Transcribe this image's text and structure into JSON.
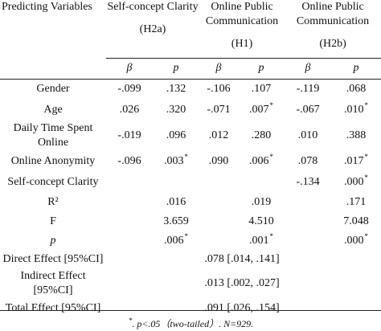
{
  "headers": {
    "predicting_variables": "Predicting Variables",
    "groups": [
      {
        "title": "Self-concept Clarity",
        "code": "(H2a)"
      },
      {
        "title": "Online Public Communication",
        "code": "(H1)"
      },
      {
        "title": "Online Public Communication",
        "code": "(H2b)"
      }
    ],
    "beta": "β",
    "p": "p"
  },
  "rows": [
    {
      "label": "Gender",
      "v": [
        "-.099",
        ".132",
        "-.106",
        ".107",
        "-.119",
        ".068"
      ],
      "sig": [
        false,
        false,
        false,
        false,
        false,
        false
      ]
    },
    {
      "label": "Age",
      "v": [
        ".026",
        ".320",
        "-.071",
        ".007",
        "-.067",
        ".010"
      ],
      "sig": [
        false,
        false,
        false,
        true,
        false,
        true
      ]
    },
    {
      "label": "Daily Time Spent Online",
      "v": [
        "-.019",
        ".096",
        ".012",
        ".280",
        ".010",
        ".388"
      ],
      "sig": [
        false,
        false,
        false,
        false,
        false,
        false
      ]
    },
    {
      "label": "Online Anonymity",
      "v": [
        "-.096",
        ".003",
        ".090",
        ".006",
        ".078",
        ".017"
      ],
      "sig": [
        false,
        true,
        false,
        true,
        false,
        true
      ]
    },
    {
      "label": "Self-concept Clarity",
      "v": [
        "",
        "",
        "",
        "",
        "-.134",
        ".000"
      ],
      "sig": [
        false,
        false,
        false,
        false,
        false,
        true
      ]
    },
    {
      "label": "R²",
      "v": [
        "",
        ".016",
        "",
        ".019",
        "",
        ".171"
      ],
      "sig": [
        false,
        false,
        false,
        false,
        false,
        false
      ]
    },
    {
      "label": "F",
      "v": [
        "",
        "3.659",
        "",
        "4.510",
        "",
        "7.048"
      ],
      "sig": [
        false,
        false,
        false,
        false,
        false,
        false
      ]
    },
    {
      "label": "p",
      "italic": true,
      "v": [
        "",
        ".006",
        "",
        ".001",
        "",
        ".000"
      ],
      "sig": [
        false,
        true,
        false,
        true,
        false,
        true
      ]
    }
  ],
  "effects": [
    {
      "label": "Direct Effect [95%CI]",
      "value": ".078 [.014, .141]"
    },
    {
      "label": "Indirect Effect [95%CI]",
      "value": ".013 [.002, .027]"
    },
    {
      "label": "Total Effect [95%CI]",
      "value": ".091 [.026, .154]"
    }
  ],
  "sig_marker": "*",
  "note": {
    "marker": "*",
    "text": ". p<.05（two-tailed）. N=929."
  }
}
